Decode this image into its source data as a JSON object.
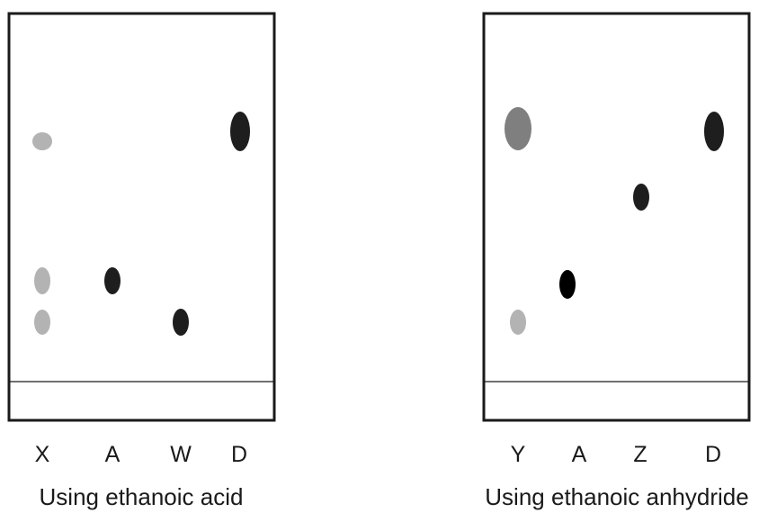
{
  "colors": {
    "spot_light": "#b3b3b3",
    "spot_medium": "#7f7f7f",
    "spot_dark": "#1e1e1e",
    "spot_black": "#000000",
    "frame": "#1a1a1a"
  },
  "plates": [
    {
      "caption": "Using ethanoic acid",
      "lanes": [
        {
          "label": "X",
          "spots": [
            {
              "shade": "light",
              "size": "small"
            },
            {
              "shade": "light",
              "size": "small"
            },
            {
              "shade": "light",
              "size": "small"
            }
          ]
        },
        {
          "label": "A",
          "spots": [
            {
              "shade": "dark",
              "size": "small"
            }
          ]
        },
        {
          "label": "W",
          "spots": [
            {
              "shade": "dark",
              "size": "small"
            }
          ]
        },
        {
          "label": "D",
          "spots": [
            {
              "shade": "dark",
              "size": "large"
            }
          ]
        }
      ]
    },
    {
      "caption": "Using ethanoic anhydride",
      "lanes": [
        {
          "label": "Y",
          "spots": [
            {
              "shade": "medium",
              "size": "large"
            },
            {
              "shade": "light",
              "size": "small"
            }
          ]
        },
        {
          "label": "A",
          "spots": [
            {
              "shade": "black",
              "size": "small"
            }
          ]
        },
        {
          "label": "Z",
          "spots": [
            {
              "shade": "dark",
              "size": "small"
            }
          ]
        },
        {
          "label": "D",
          "spots": [
            {
              "shade": "dark",
              "size": "large"
            }
          ]
        }
      ]
    }
  ]
}
